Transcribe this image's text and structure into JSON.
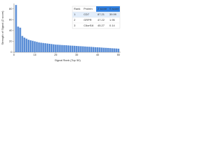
{
  "chart_data": {
    "type": "bar",
    "xlabel": "Signal Rank (Top 50)",
    "ylabel": "Strength of Signal (Z score)",
    "x": [
      1,
      2,
      3,
      4,
      5,
      6,
      7,
      8,
      9,
      10,
      11,
      12,
      13,
      14,
      15,
      16,
      17,
      18,
      19,
      20,
      21,
      22,
      23,
      24,
      25,
      26,
      27,
      28,
      29,
      30,
      31,
      32,
      33,
      34,
      35,
      36,
      37,
      38,
      39,
      40,
      41,
      42,
      43,
      44,
      45,
      46,
      47,
      48,
      49,
      50
    ],
    "values": [
      87.21,
      47.22,
      45.27,
      30,
      27,
      25,
      23,
      22,
      21,
      20,
      19,
      18,
      17.5,
      17,
      16.5,
      16,
      15.5,
      15,
      14.5,
      14,
      13.8,
      13.5,
      13.2,
      13,
      12.8,
      12.5,
      12.2,
      12,
      11.8,
      11.5,
      11.2,
      11,
      10.8,
      10.5,
      10.2,
      10,
      9.8,
      9.5,
      9.2,
      9,
      8.8,
      8.5,
      8.2,
      8,
      7.8,
      7.5,
      7.2,
      7,
      6.8,
      6.5
    ],
    "color": "#5b8ed6",
    "xlim": [
      0,
      51
    ],
    "xticks": [
      0,
      10,
      20,
      30,
      40,
      50
    ],
    "ylim": [
      0,
      90
    ],
    "yticks": [
      0,
      20,
      40,
      60,
      80
    ]
  },
  "table": {
    "header": [
      "Rank",
      "Protein",
      "Z score",
      "S score"
    ],
    "rows": [
      [
        "1",
        "CD7",
        "87.21",
        "39.99"
      ],
      [
        "2",
        "GRPR",
        "47.22",
        "1.95"
      ],
      [
        "3",
        "C6orf16",
        "45.27",
        "0.14"
      ]
    ]
  }
}
